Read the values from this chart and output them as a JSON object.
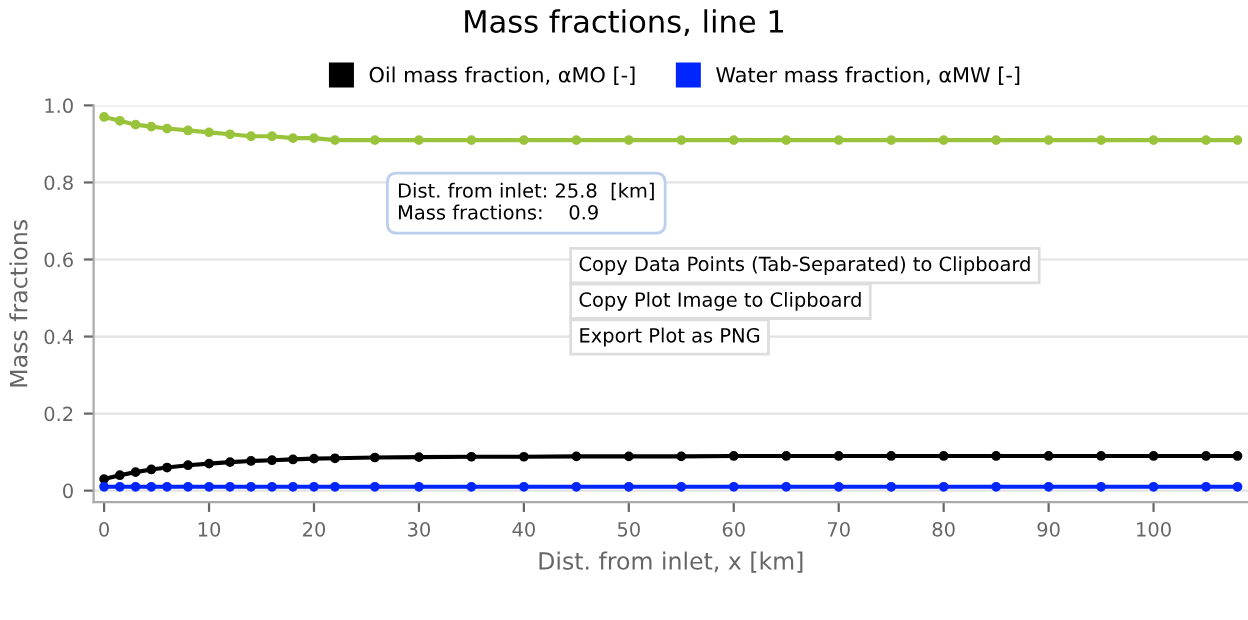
{
  "chart_data": {
    "type": "line",
    "title": "Mass fractions, line 1",
    "xlabel": "Dist. from inlet, x [km]",
    "ylabel": "Mass fractions",
    "x": [
      0,
      1.5,
      3,
      4.5,
      6,
      8,
      10,
      12,
      14,
      16,
      18,
      20,
      22,
      25.8,
      30,
      35,
      40,
      45,
      50,
      55,
      60,
      65,
      70,
      75,
      80,
      85,
      90,
      95,
      100,
      105,
      108
    ],
    "series": [
      {
        "color": "#9ac33c",
        "values": [
          0.97,
          0.96,
          0.95,
          0.945,
          0.94,
          0.935,
          0.93,
          0.925,
          0.92,
          0.92,
          0.915,
          0.915,
          0.91,
          0.91,
          0.91,
          0.91,
          0.91,
          0.91,
          0.91,
          0.91,
          0.91,
          0.91,
          0.91,
          0.91,
          0.91,
          0.91,
          0.91,
          0.91,
          0.91,
          0.91,
          0.91
        ]
      },
      {
        "name": "Oil mass fraction, αMO [-]",
        "color": "#000000",
        "values": [
          0.03,
          0.04,
          0.048,
          0.055,
          0.06,
          0.066,
          0.07,
          0.074,
          0.077,
          0.079,
          0.081,
          0.083,
          0.084,
          0.086,
          0.087,
          0.088,
          0.088,
          0.089,
          0.089,
          0.089,
          0.09,
          0.09,
          0.09,
          0.09,
          0.09,
          0.09,
          0.09,
          0.09,
          0.09,
          0.09,
          0.09
        ]
      },
      {
        "name": "Water mass fraction, αMW [-]",
        "color": "#0026ff",
        "values": [
          0.01,
          0.01,
          0.01,
          0.01,
          0.01,
          0.01,
          0.01,
          0.01,
          0.01,
          0.01,
          0.01,
          0.01,
          0.01,
          0.01,
          0.01,
          0.01,
          0.01,
          0.01,
          0.01,
          0.01,
          0.01,
          0.01,
          0.01,
          0.01,
          0.01,
          0.01,
          0.01,
          0.01,
          0.01,
          0.01,
          0.01
        ]
      }
    ],
    "xlim": [
      -1,
      109
    ],
    "xticks": [
      0,
      10,
      20,
      30,
      40,
      50,
      60,
      70,
      80,
      90,
      100
    ],
    "ylim": [
      -0.03,
      1.0
    ],
    "yticks": [
      0,
      0.2,
      0.4,
      0.6,
      0.8,
      {
        "value": 1.0,
        "label": "1.0"
      }
    ],
    "grid": "y",
    "legend": "top",
    "marker": "circle",
    "line_style": "solid",
    "annotations": [
      {
        "text": "Dist. from inlet: 25.8  [km]\nMass fractions:    0.9",
        "x": 25.8,
        "y": 0.9
      },
      "Copy Data Points (Tab-Separated) to Clipboard",
      "Copy Plot Image to Clipboard",
      "Export Plot as PNG"
    ]
  }
}
